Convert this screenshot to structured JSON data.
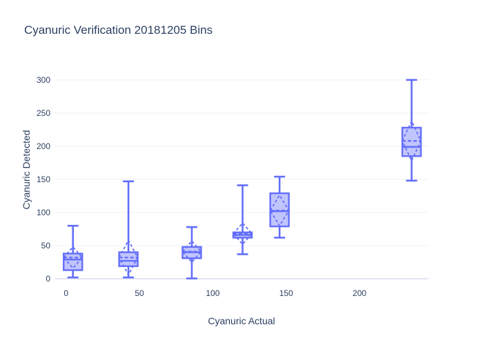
{
  "chart_data": {
    "type": "box",
    "title": "Cyanuric Verification 20181205 Bins",
    "xlabel": "Cyanuric Actual",
    "ylabel": "Cyanuric Detected",
    "legend": "none",
    "grid": "horizontal-only",
    "boxmean": "sd",
    "x_ticks": [
      0,
      50,
      100,
      150,
      200
    ],
    "y_ticks": [
      0,
      50,
      100,
      150,
      200,
      250,
      300
    ],
    "x_range": [
      -7.4,
      247
    ],
    "y_range": [
      0,
      329
    ],
    "boxes": [
      {
        "x": 4.7,
        "min": 2,
        "q1": 13,
        "median": 29,
        "q3": 38,
        "max": 80,
        "mean": 32,
        "sd": 16
      },
      {
        "x": 42.5,
        "min": 2,
        "q1": 19,
        "median": 27,
        "q3": 40,
        "max": 147,
        "mean": 32,
        "sd": 26
      },
      {
        "x": 85.7,
        "min": 0.5,
        "q1": 31,
        "median": 40,
        "q3": 48,
        "max": 78,
        "mean": 41,
        "sd": 16
      },
      {
        "x": 120.3,
        "min": 37,
        "q1": 62,
        "median": 66,
        "q3": 70,
        "max": 141,
        "mean": 68,
        "sd": 16
      },
      {
        "x": 145.5,
        "min": 62,
        "q1": 79,
        "median": 102,
        "q3": 129,
        "max": 154,
        "mean": 103,
        "sd": 23
      },
      {
        "x": 235.5,
        "min": 148,
        "q1": 185,
        "median": 199,
        "q3": 228,
        "max": 300,
        "mean": 208,
        "sd": 30
      }
    ],
    "colors": {
      "line": "#636EFA",
      "fill": "rgba(99,110,250,0.4)",
      "font": "#2a3f5f",
      "grid": "#EBF0F8",
      "zeroline": "#D8DCF2",
      "background": "#ffffff"
    }
  }
}
